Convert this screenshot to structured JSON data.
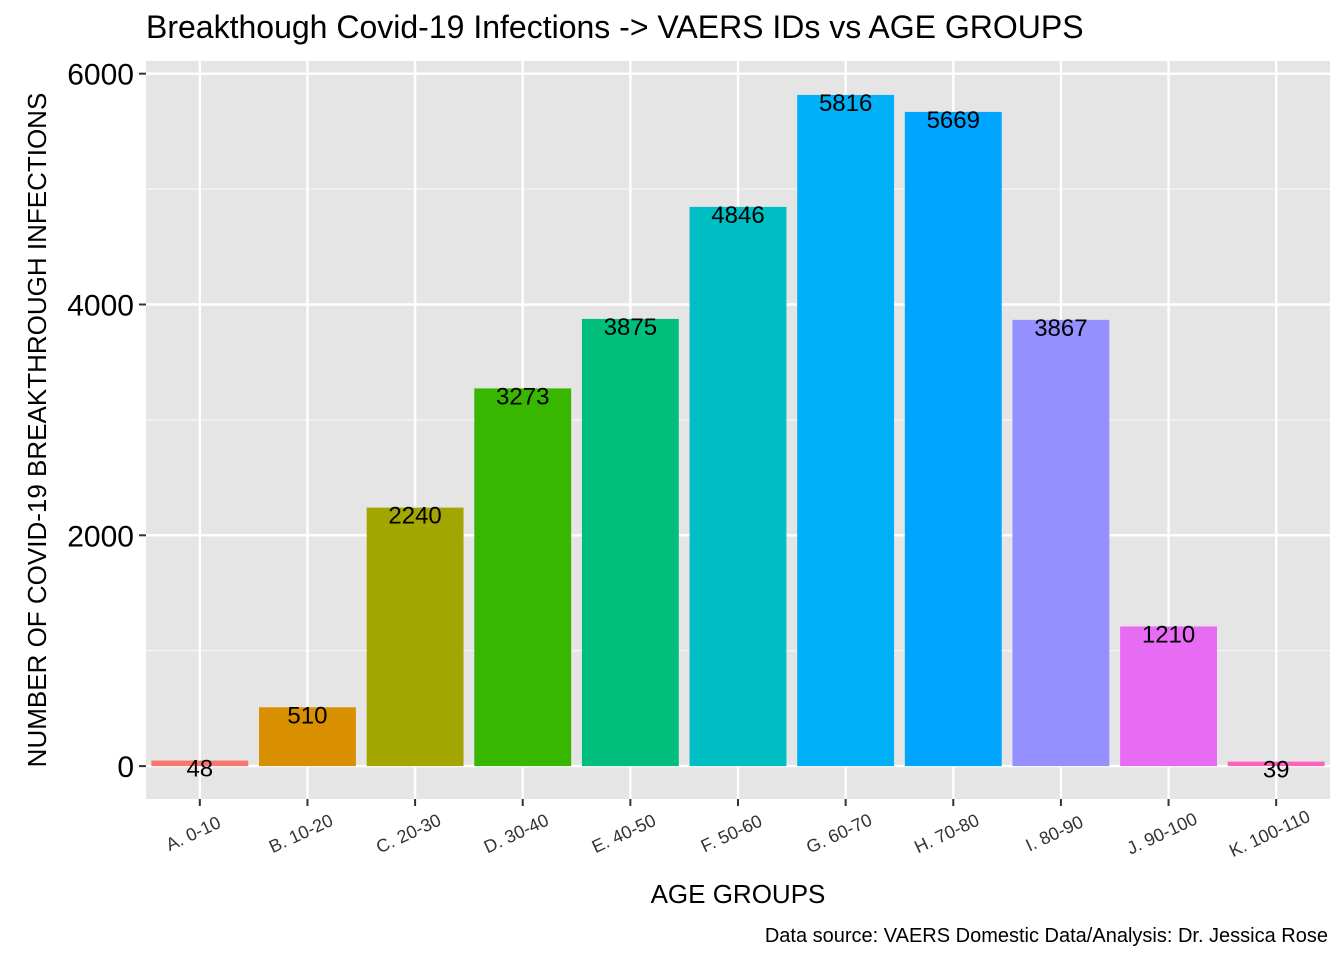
{
  "chart_data": {
    "type": "bar",
    "title": "Breakthough Covid-19 Infections -> VAERS IDs vs AGE GROUPS",
    "xlabel": "AGE GROUPS",
    "ylabel": "NUMBER OF COVID-19 BREAKTHROUGH INFECTIONS",
    "caption": "Data source: VAERS Domestic Data/Analysis: Dr. Jessica Rose",
    "categories": [
      "A. 0-10",
      "B. 10-20",
      "C. 20-30",
      "D. 30-40",
      "E. 40-50",
      "F. 50-60",
      "G. 60-70",
      "H. 70-80",
      "I. 80-90",
      "J. 90-100",
      "K. 100-110"
    ],
    "values": [
      48,
      510,
      2240,
      3273,
      3875,
      4846,
      5816,
      5669,
      3867,
      1210,
      39
    ],
    "colors": [
      "#F8766D",
      "#D89000",
      "#A3A500",
      "#39B600",
      "#00BF7D",
      "#00BFC4",
      "#00B0F6",
      "#00A5FF",
      "#9590FF",
      "#E76BF3",
      "#FF62BC"
    ],
    "yticks": [
      0,
      2000,
      4000,
      6000
    ],
    "ylim": [
      -285,
      6110
    ],
    "grid": true,
    "legend": "none",
    "panel_color": "#E5E5E5"
  }
}
